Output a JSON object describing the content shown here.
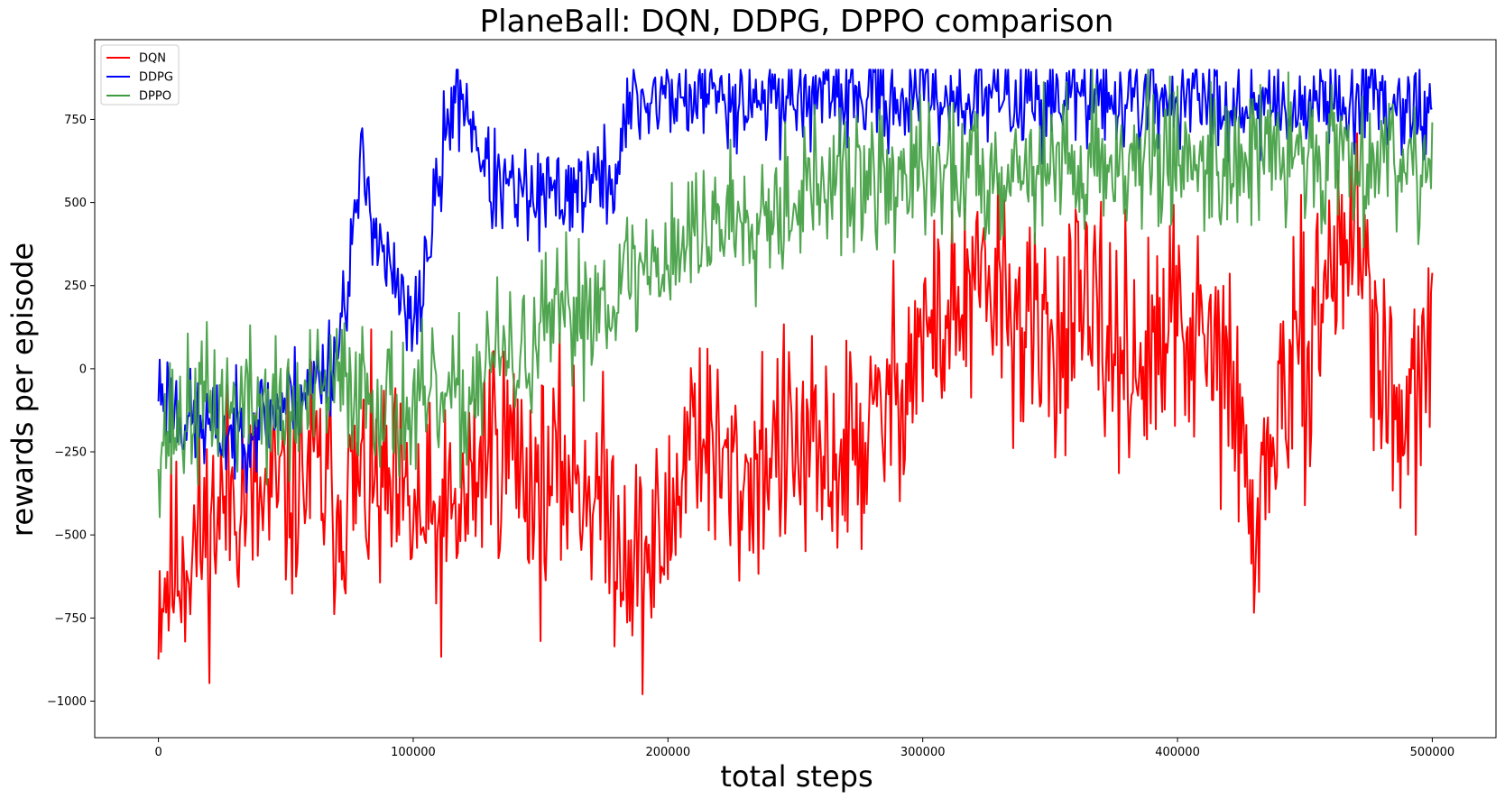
{
  "chart_data": {
    "type": "line",
    "title": "PlaneBall: DQN, DDPG, DPPO comparison",
    "xlabel": "total steps",
    "ylabel": "rewards per episode",
    "xlim": [
      -25000,
      525000
    ],
    "ylim": [
      -1110,
      990
    ],
    "xticks": [
      0,
      100000,
      200000,
      300000,
      400000,
      500000
    ],
    "yticks": [
      -1000,
      -750,
      -500,
      -250,
      0,
      250,
      500,
      750
    ],
    "grid": false,
    "legend_position": "top-left",
    "series": [
      {
        "name": "DQN",
        "color": "#ff0000",
        "x": [
          0,
          10000,
          20000,
          30000,
          40000,
          50000,
          60000,
          70000,
          80000,
          90000,
          100000,
          110000,
          120000,
          130000,
          140000,
          150000,
          160000,
          170000,
          180000,
          190000,
          200000,
          210000,
          220000,
          230000,
          240000,
          250000,
          260000,
          270000,
          280000,
          290000,
          300000,
          310000,
          320000,
          330000,
          340000,
          350000,
          360000,
          370000,
          380000,
          390000,
          400000,
          410000,
          420000,
          430000,
          440000,
          450000,
          460000,
          470000,
          480000,
          490000,
          500000
        ],
        "values": [
          -660,
          -560,
          -480,
          -350,
          -420,
          -380,
          -300,
          -410,
          -350,
          -400,
          -450,
          -500,
          -420,
          -200,
          -250,
          -380,
          -300,
          -350,
          -480,
          -600,
          -500,
          -120,
          -300,
          -350,
          -230,
          -250,
          -300,
          -250,
          -200,
          -50,
          100,
          150,
          200,
          250,
          100,
          80,
          150,
          100,
          50,
          0,
          150,
          50,
          0,
          -500,
          -100,
          50,
          300,
          450,
          0,
          -250,
          150
        ],
        "noise": 170,
        "seed": 11
      },
      {
        "name": "DDPG",
        "color": "#0000ff",
        "x": [
          0,
          10000,
          20000,
          30000,
          40000,
          50000,
          60000,
          70000,
          80000,
          90000,
          100000,
          110000,
          115000,
          120000,
          125000,
          130000,
          140000,
          150000,
          160000,
          170000,
          180000,
          185000,
          190000,
          200000,
          250000,
          300000,
          350000,
          400000,
          450000,
          480000,
          500000
        ],
        "values": [
          -50,
          -150,
          -180,
          -200,
          -150,
          -100,
          -50,
          50,
          600,
          300,
          100,
          550,
          800,
          820,
          700,
          560,
          520,
          500,
          540,
          560,
          580,
          800,
          810,
          820,
          820,
          820,
          815,
          810,
          800,
          830,
          770
        ],
        "noise": 75,
        "seed": 23
      },
      {
        "name": "DPPO",
        "color": "#3d9c3d",
        "x": [
          0,
          10000,
          20000,
          30000,
          40000,
          50000,
          60000,
          70000,
          80000,
          90000,
          100000,
          110000,
          120000,
          130000,
          140000,
          150000,
          160000,
          170000,
          180000,
          190000,
          200000,
          210000,
          220000,
          240000,
          260000,
          280000,
          300000,
          320000,
          340000,
          360000,
          380000,
          400000,
          420000,
          440000,
          460000,
          480000,
          500000
        ],
        "values": [
          -200,
          -150,
          -100,
          -120,
          -100,
          -150,
          -100,
          -50,
          -50,
          -100,
          -150,
          -100,
          -120,
          50,
          0,
          100,
          150,
          200,
          250,
          300,
          350,
          400,
          450,
          500,
          550,
          560,
          580,
          600,
          610,
          620,
          630,
          640,
          630,
          640,
          650,
          650,
          620
        ],
        "noise": 110,
        "seed": 37
      }
    ]
  }
}
